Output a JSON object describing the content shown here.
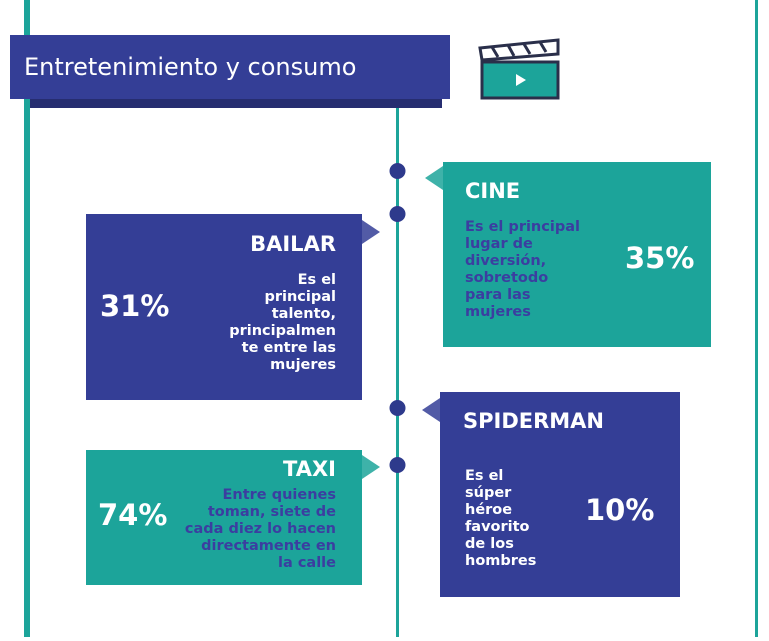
{
  "header": {
    "title": "Entretenimiento y consumo"
  },
  "items": [
    {
      "title": "CINE",
      "description": [
        "Es el principal",
        "lugar de",
        "diversión,",
        "sobretodo",
        "para las",
        "mujeres"
      ],
      "percent": "35%"
    },
    {
      "title": "BAILAR",
      "description": [
        "Es el",
        "principal",
        "talento,",
        "principalmen",
        "te entre las",
        "mujeres"
      ],
      "percent": "31%"
    },
    {
      "title": "SPIDERMAN",
      "description": [
        "Es el",
        "súper",
        "héroe",
        "favorito",
        "de los",
        "hombres"
      ],
      "percent": "10%"
    },
    {
      "title": "TAXI",
      "description": [
        "Entre quienes",
        "toman, siete de",
        "cada diez lo hacen",
        "directamente en",
        "la calle"
      ],
      "percent": "74%"
    }
  ]
}
